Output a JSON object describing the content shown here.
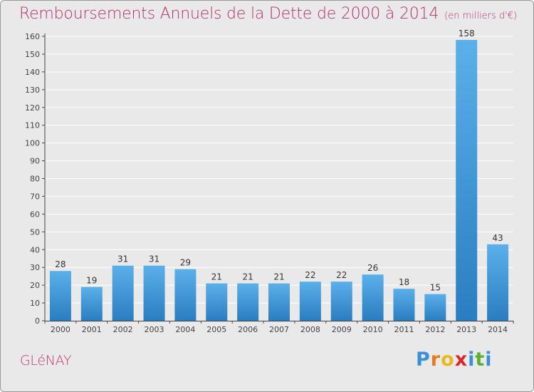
{
  "header": {
    "title": "Remboursements Annuels de la Dette de 2000 à 2014",
    "subtitle": "(en milliers d'€)"
  },
  "footer": {
    "commune": "GLéNAY",
    "logo_letters": [
      "P",
      "r",
      "o",
      "x",
      "i",
      "t",
      "i"
    ],
    "logo_colors": [
      "#3a8fd6",
      "#e87a1e",
      "#e8b81e",
      "#d8282a",
      "#3a8fd6",
      "#5cb030",
      "#3a8fd6"
    ]
  },
  "chart_data": {
    "type": "bar",
    "title": "Remboursements Annuels de la Dette de 2000 à 2014",
    "subtitle": "(en milliers d'€)",
    "categories": [
      "2000",
      "2001",
      "2002",
      "2003",
      "2004",
      "2005",
      "2006",
      "2007",
      "2008",
      "2009",
      "2010",
      "2011",
      "2012",
      "2013",
      "2014"
    ],
    "values": [
      28,
      19,
      31,
      31,
      29,
      21,
      21,
      21,
      22,
      22,
      26,
      18,
      15,
      158,
      43
    ],
    "ylim": [
      0,
      160
    ],
    "yticks": [
      0,
      10,
      20,
      30,
      40,
      50,
      60,
      70,
      80,
      90,
      100,
      110,
      120,
      130,
      140,
      150,
      160
    ],
    "grid": true,
    "legend": "none",
    "colors": {
      "bar_light": "#5bb0ea",
      "bar_dark": "#2a7dc0",
      "label": "#333333",
      "axis": "#444444",
      "grid": "#ffffff"
    }
  }
}
